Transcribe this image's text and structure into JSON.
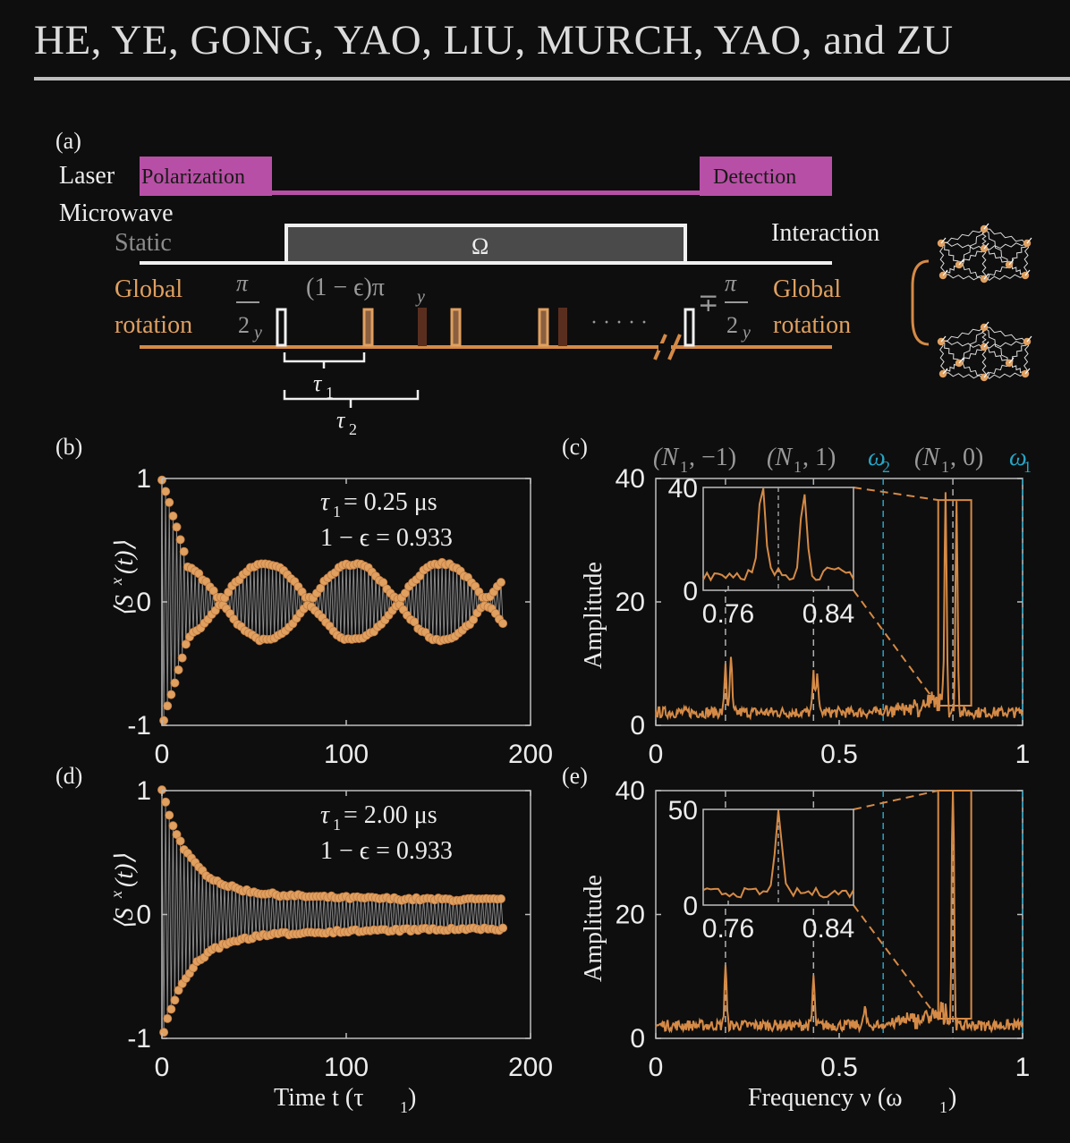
{
  "header": {
    "running_title": "HE, YE, GONG, YAO, LIU, MURCH, YAO, and ZU"
  },
  "colors": {
    "orange": "#e0a060",
    "orange_line": "#d58a46",
    "magenta": "#b84fa6",
    "cyan": "#27a4c4",
    "grey_label": "#9a9a9a",
    "dark_pulse": "#5a2e1e"
  },
  "panel_a": {
    "label": "(a)",
    "laser_label": "Laser",
    "polarization": "Polarization",
    "detection": "Detection",
    "microwave_label": "Microwave",
    "static_label": "Static",
    "omega": "Ω",
    "interaction": "Interaction",
    "global_left_1": "Global",
    "global_left_2": "rotation",
    "global_right_1": "Global",
    "global_right_2": "rotation",
    "pi_over_2y_num": "π",
    "pi_over_2y_den": "2",
    "pi_over_2y_sub": "y",
    "mp_sign": "∓",
    "eps_pulse": "(1 − ϵ)π",
    "eps_sub": "y",
    "dots": "· · · · ·",
    "tau1": "τ",
    "tau1_sub": "1",
    "tau2": "τ",
    "tau2_sub": "2"
  },
  "panels": {
    "b": "(b)",
    "c": "(c)",
    "d": "(d)",
    "e": "(e)"
  },
  "panel_b": {
    "ylabel": "⟨S",
    "ylabel_sup": "x",
    "ylabel_tail": "(t)⟩",
    "tau_line": "τ",
    "tau_sub": "1",
    "tau_value": " = 0.25 μs",
    "eps_line": "1 − ϵ = 0.933"
  },
  "panel_d": {
    "ylabel": "⟨S",
    "ylabel_sup": "x",
    "ylabel_tail": "(t)⟩",
    "tau_line": "τ",
    "tau_sub": "1",
    "tau_value": " = 2.00 μs",
    "eps_line": "1 − ϵ = 0.933",
    "xlabel": "Time t (τ",
    "xlabel_sub": "1",
    "xlabel_tail": ")"
  },
  "panel_c": {
    "ylabel": "Amplitude",
    "top_labels": [
      {
        "text": "(N",
        "sub": "1",
        "tail": ", −1)",
        "color": "grey"
      },
      {
        "text": "(N",
        "sub": "1",
        "tail": ", 1)",
        "color": "grey"
      },
      {
        "text": "ω",
        "sub": "2",
        "tail": "",
        "color": "cyan"
      },
      {
        "text": "(N",
        "sub": "1",
        "tail": ", 0)",
        "color": "grey"
      },
      {
        "text": "ω",
        "sub": "1",
        "tail": "",
        "color": "cyan"
      }
    ]
  },
  "panel_e": {
    "ylabel": "Amplitude",
    "xlabel": "Frequency ν (ω",
    "xlabel_sub": "1",
    "xlabel_tail": ")"
  },
  "chart_data": [
    {
      "id": "b",
      "type": "scatter",
      "xlabel": "",
      "ylabel": "⟨S^x(t)⟩",
      "xlim": [
        0,
        200
      ],
      "ylim": [
        -1,
        1
      ],
      "xticks": [
        "0",
        "100",
        "200"
      ],
      "yticks": [
        "-1",
        "0",
        "1"
      ],
      "n_points": 186,
      "envelope": "beating",
      "series": [
        {
          "name": "",
          "description_values": [
            1.0,
            0.98,
            -0.98,
            0.95,
            -0.9,
            0.72,
            -0.68,
            0.55,
            -0.5,
            0.4
          ]
        }
      ]
    },
    {
      "id": "d",
      "type": "scatter",
      "xlabel": "Time t (τ1)",
      "ylabel": "⟨S^x(t)⟩",
      "xlim": [
        0,
        200
      ],
      "ylim": [
        -1,
        1
      ],
      "xticks": [
        "0",
        "100",
        "200"
      ],
      "yticks": [
        "-1",
        "0",
        "1"
      ],
      "n_points": 186,
      "envelope": "decay",
      "series": [
        {
          "name": "",
          "description_values": [
            1.0,
            0.9,
            -0.9,
            0.82,
            -0.78,
            0.6,
            -0.55,
            0.35,
            -0.3,
            0.12
          ]
        }
      ]
    },
    {
      "id": "c",
      "type": "line",
      "xlabel": "",
      "ylabel": "Amplitude",
      "xlim": [
        0,
        1
      ],
      "ylim": [
        0,
        40
      ],
      "xticks": [
        "0",
        "0.5",
        "1"
      ],
      "yticks": [
        "0",
        "20",
        "40"
      ],
      "peaks": [
        {
          "x": 0.19,
          "y": 8
        },
        {
          "x": 0.205,
          "y": 9
        },
        {
          "x": 0.43,
          "y": 6
        },
        {
          "x": 0.44,
          "y": 7
        },
        {
          "x": 0.79,
          "y": 35
        },
        {
          "x": 0.82,
          "y": 34
        }
      ],
      "dashed_grey": [
        0.19,
        0.43,
        0.81
      ],
      "dashed_cyan": [
        0.62,
        1.0
      ],
      "inset": {
        "xlim": [
          0.74,
          0.86
        ],
        "ylim": [
          0,
          40
        ],
        "xticks": [
          "0.76",
          "0.84"
        ],
        "yticks": [
          "0",
          "40"
        ],
        "peaks": [
          {
            "x": 0.787,
            "y": 35
          },
          {
            "x": 0.82,
            "y": 33
          }
        ]
      }
    },
    {
      "id": "e",
      "type": "line",
      "xlabel": "Frequency ν (ω1)",
      "ylabel": "Amplitude",
      "xlim": [
        0,
        1
      ],
      "ylim": [
        0,
        40
      ],
      "xticks": [
        "0",
        "0.5",
        "1"
      ],
      "yticks": [
        "0",
        "20",
        "40"
      ],
      "peaks": [
        {
          "x": 0.19,
          "y": 10
        },
        {
          "x": 0.43,
          "y": 8
        },
        {
          "x": 0.57,
          "y": 3
        },
        {
          "x": 0.81,
          "y": 45
        }
      ],
      "dashed_grey": [
        0.19,
        0.43,
        0.81
      ],
      "dashed_cyan": [
        0.62,
        1.0
      ],
      "inset": {
        "xlim": [
          0.74,
          0.86
        ],
        "ylim": [
          0,
          50
        ],
        "xticks": [
          "0.76",
          "0.84"
        ],
        "yticks": [
          "0",
          "50"
        ],
        "peaks": [
          {
            "x": 0.8,
            "y": 45
          }
        ]
      }
    }
  ]
}
